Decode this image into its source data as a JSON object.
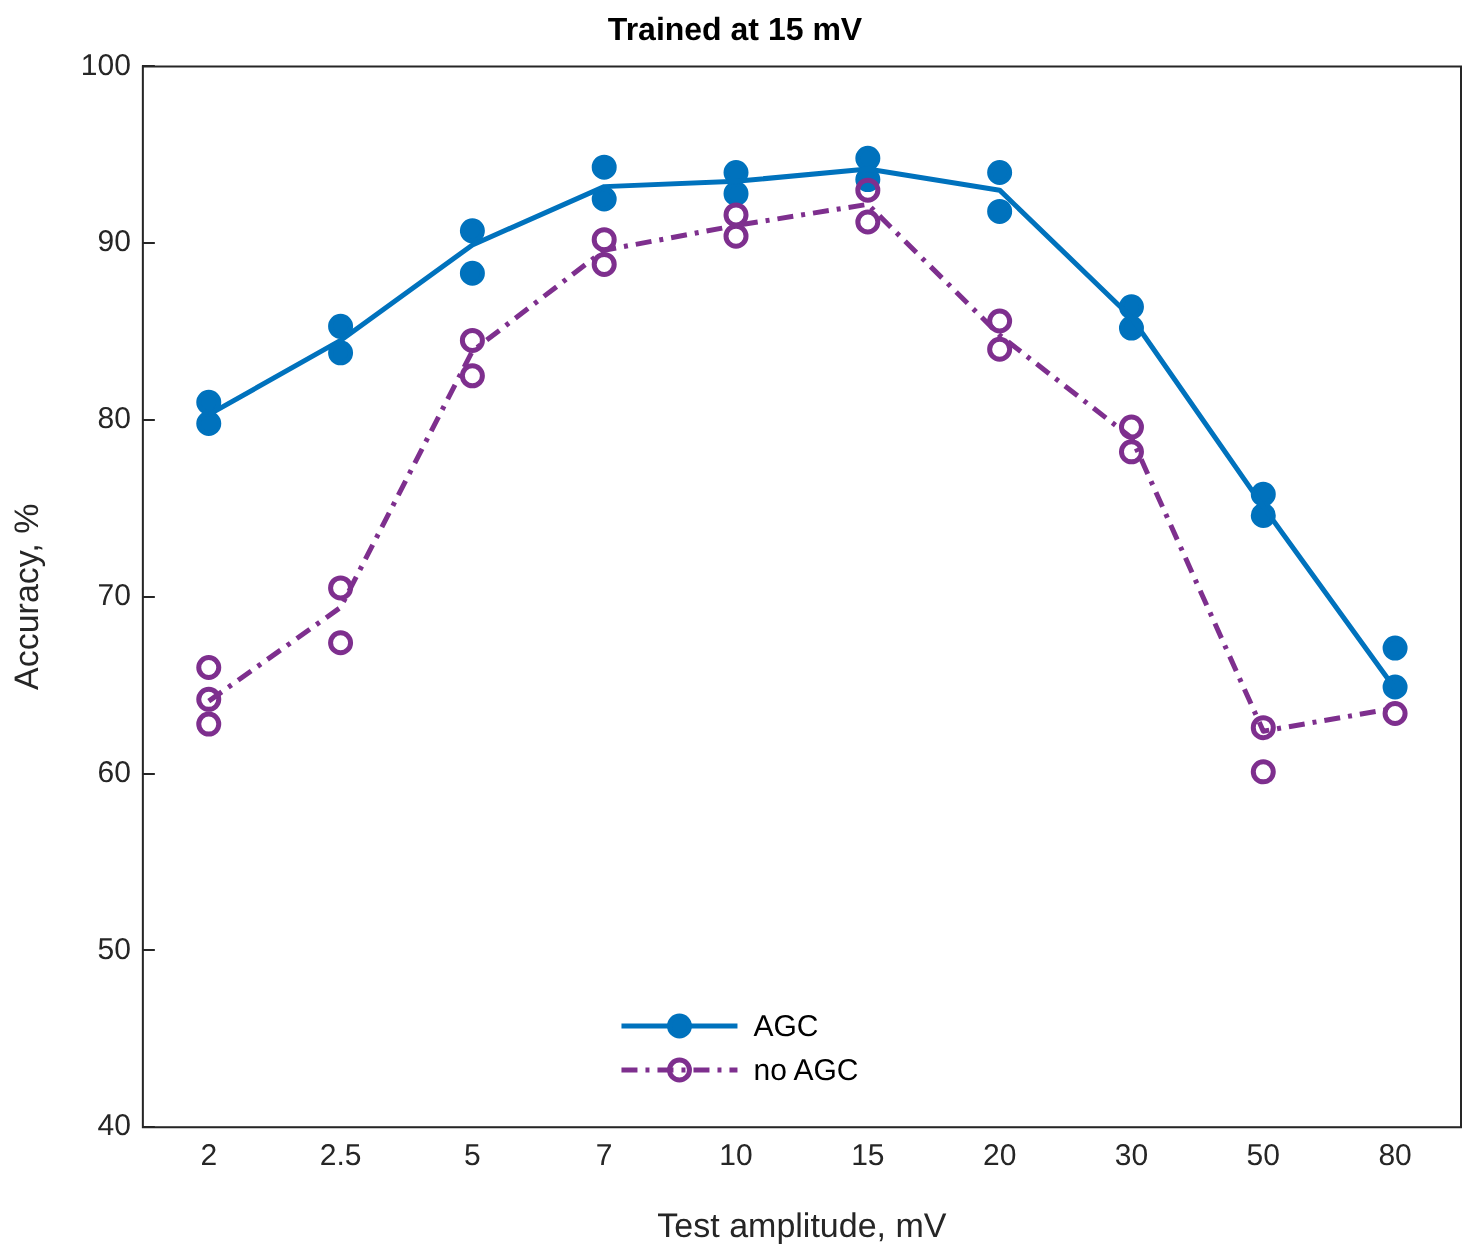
{
  "chart_data": {
    "type": "line",
    "title": "Trained at 15 mV",
    "xlabel": "Test amplitude, mV",
    "ylabel": "Accuracy, %",
    "categories": [
      "2",
      "2.5",
      "5",
      "7",
      "10",
      "15",
      "20",
      "30",
      "50",
      "80"
    ],
    "series": [
      {
        "name": "AGC",
        "color": "#0072bd",
        "values": [
          80.3,
          84.5,
          89.9,
          93.2,
          93.5,
          94.2,
          93.0,
          85.8,
          75.1,
          64.8
        ],
        "line_style": "solid"
      },
      {
        "name": "no AGC",
        "color": "#7e2f8e",
        "values": [
          64.1,
          69.4,
          83.9,
          89.6,
          91.0,
          92.2,
          84.8,
          79.0,
          62.4,
          63.7
        ],
        "line_style": "dashed"
      },
      {
        "type": "scatter",
        "color": "#7e2f8e",
        "marker": "circle",
        "x": [
          "2",
          "2",
          "2",
          "2.5",
          "2.5",
          "5",
          "5",
          "7",
          "7",
          "10",
          "10",
          "15",
          "15",
          "20",
          "20",
          "30",
          "30",
          "50",
          "50",
          "80"
        ],
        "values": [
          62.8,
          64.2,
          66.0,
          67.4,
          70.5,
          82.5,
          84.5,
          88.8,
          90.2,
          90.4,
          91.6,
          91.2,
          93.0,
          84.0,
          85.6,
          78.2,
          79.6,
          60.1,
          62.6,
          63.4
        ]
      },
      {
        "type": "scatter",
        "color": "#0072bd",
        "marker": "circle",
        "x": [
          "2",
          "2",
          "2.5",
          "2.5",
          "5",
          "5",
          "7",
          "7",
          "10",
          "10",
          "15",
          "15",
          "20",
          "20",
          "30",
          "30",
          "50",
          "50",
          "80",
          "80"
        ],
        "values": [
          79.8,
          81.0,
          83.8,
          85.3,
          88.3,
          90.7,
          92.5,
          94.3,
          92.8,
          94.0,
          93.6,
          94.8,
          91.8,
          94.0,
          85.2,
          86.4,
          74.6,
          75.8,
          64.9,
          67.1
        ]
      }
    ],
    "ylim": [
      40,
      100
    ],
    "yticks": [
      40,
      50,
      60,
      70,
      80,
      90,
      100
    ],
    "grid": false,
    "legend": "bottom"
  }
}
